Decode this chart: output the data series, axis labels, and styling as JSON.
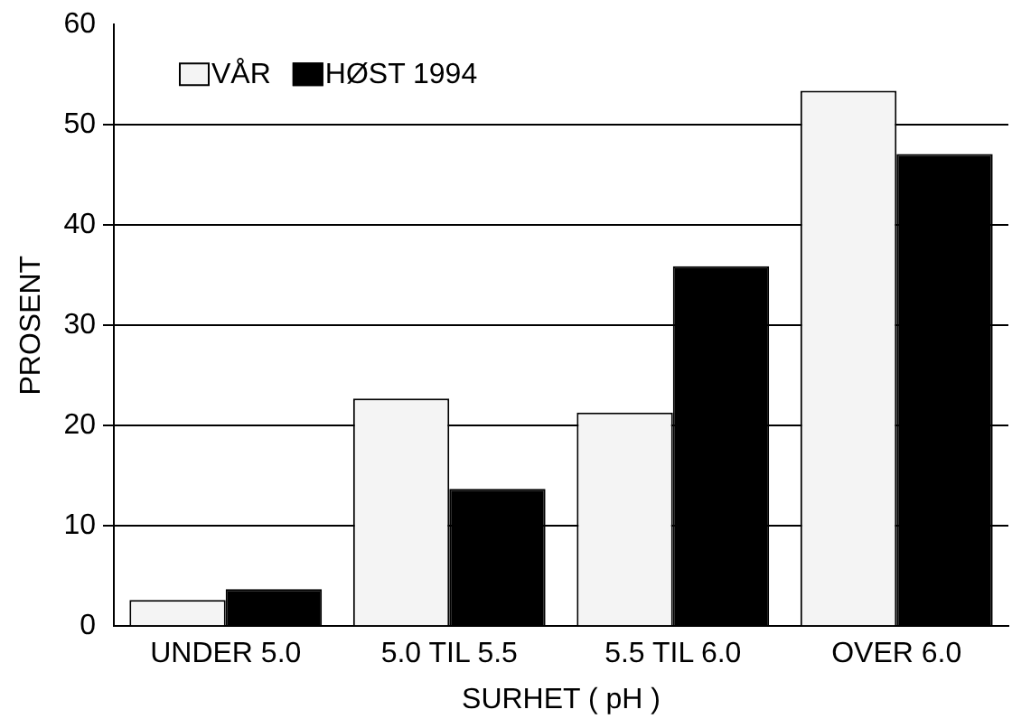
{
  "chart_data": {
    "type": "bar",
    "xlabel": "SURHET ( pH )",
    "ylabel": "PROSENT",
    "categories": [
      "UNDER 5.0",
      "5.0 TIL 5.5",
      "5.5 TIL 6.0",
      "OVER 6.0"
    ],
    "series": [
      {
        "name": "VÅR",
        "color": "#f4f4f4",
        "values": [
          2.6,
          22.7,
          21.3,
          53.4
        ]
      },
      {
        "name": "HØST 1994",
        "color": "#000000",
        "values": [
          3.7,
          13.7,
          35.9,
          47.1
        ]
      }
    ],
    "ylim": [
      0,
      60
    ],
    "yticks": [
      0,
      10,
      20,
      30,
      40,
      50,
      60
    ],
    "grid": "y",
    "legend": "top left"
  }
}
